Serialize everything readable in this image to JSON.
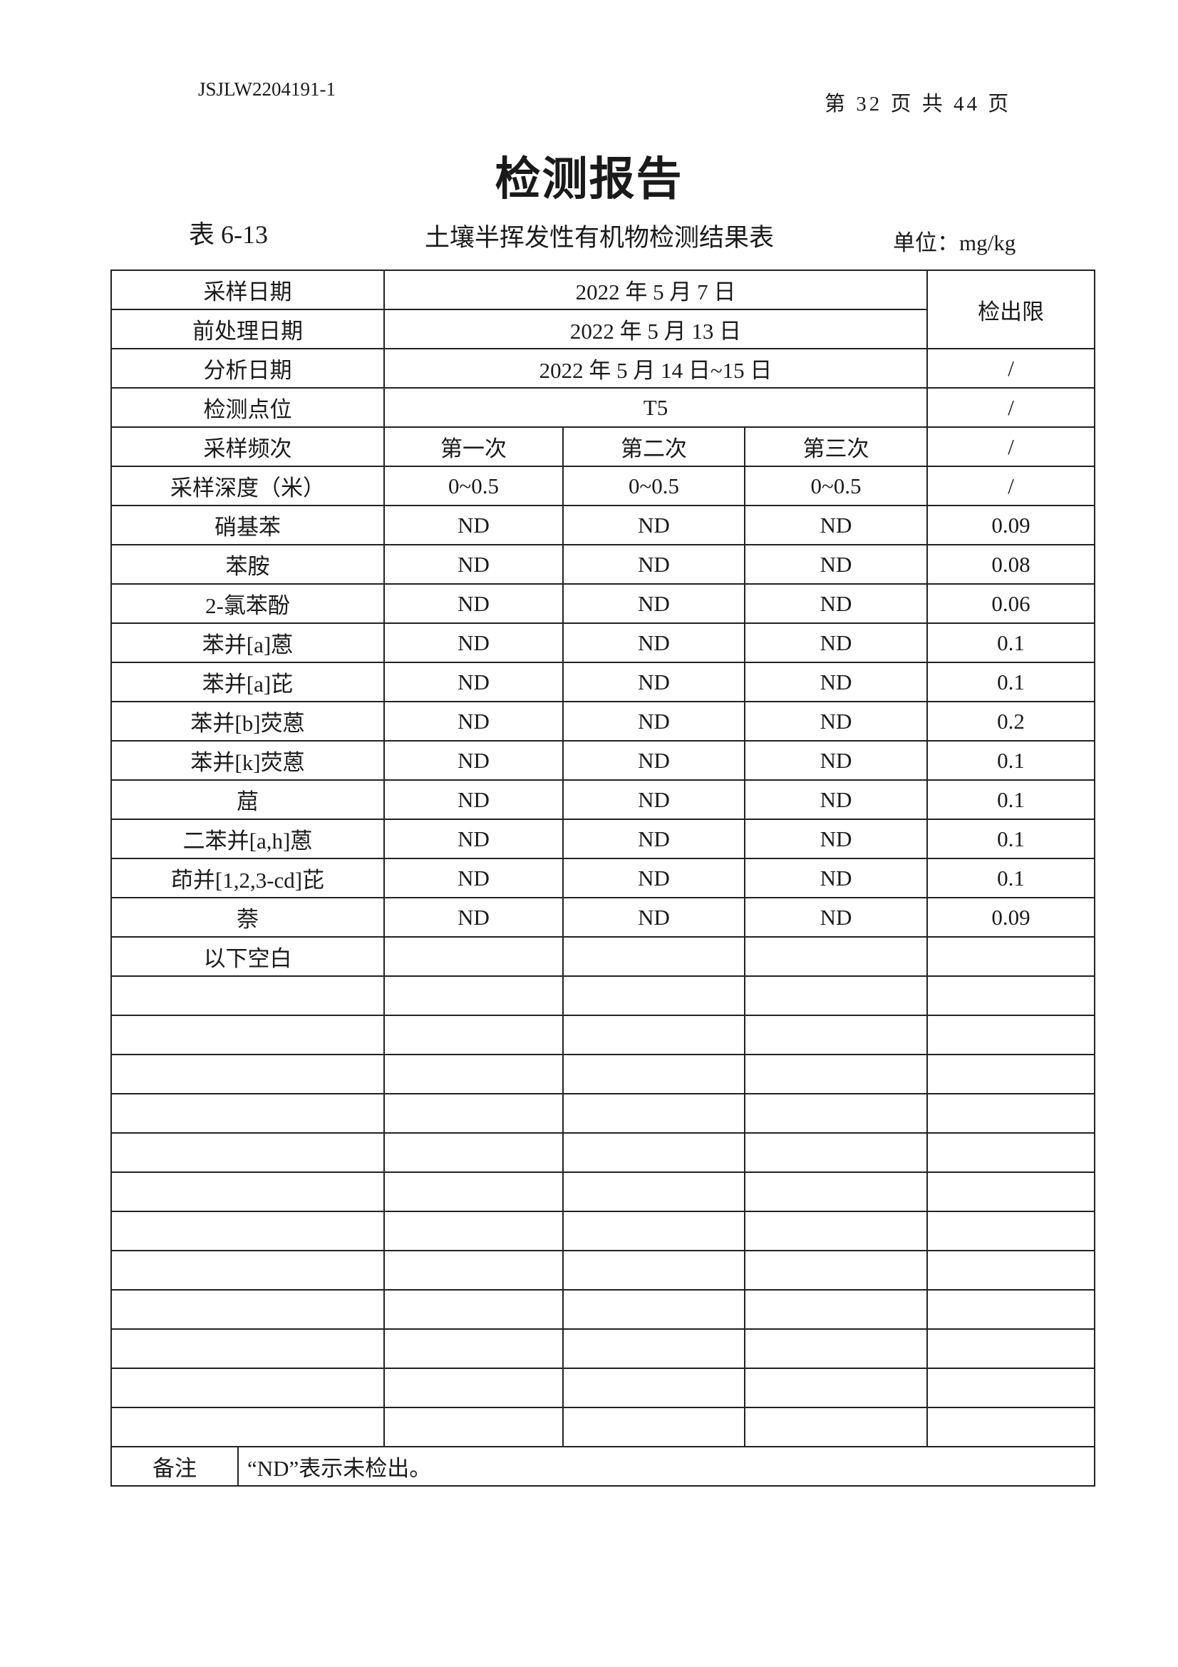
{
  "header": {
    "doc_no": "JSJLW2204191-1",
    "page": "第 32 页 共 44 页"
  },
  "title": "检测报告",
  "table_no": "表 6-13",
  "table_title": "土壤半挥发性有机物检测结果表",
  "unit": "单位：mg/kg",
  "meta": {
    "sampling_date_label": "采样日期",
    "sampling_date": "2022 年 5 月 7 日",
    "pretreat_date_label": "前处理日期",
    "pretreat_date": "2022 年 5 月 13 日",
    "detection_limit_label": "检出限",
    "analysis_date_label": "分析日期",
    "analysis_date": "2022 年 5 月 14 日~15 日",
    "analysis_limit": "/",
    "site_label": "检测点位",
    "site": "T5",
    "site_limit": "/",
    "freq_label": "采样频次",
    "freq": [
      "第一次",
      "第二次",
      "第三次"
    ],
    "freq_limit": "/",
    "depth_label": "采样深度（米）",
    "depth": [
      "0~0.5",
      "0~0.5",
      "0~0.5"
    ],
    "depth_limit": "/"
  },
  "rows": [
    {
      "name": "硝基苯",
      "values": [
        "ND",
        "ND",
        "ND"
      ],
      "limit": "0.09"
    },
    {
      "name": "苯胺",
      "values": [
        "ND",
        "ND",
        "ND"
      ],
      "limit": "0.08"
    },
    {
      "name": "2-氯苯酚",
      "values": [
        "ND",
        "ND",
        "ND"
      ],
      "limit": "0.06"
    },
    {
      "name": "苯并[a]蒽",
      "values": [
        "ND",
        "ND",
        "ND"
      ],
      "limit": "0.1"
    },
    {
      "name": "苯并[a]芘",
      "values": [
        "ND",
        "ND",
        "ND"
      ],
      "limit": "0.1"
    },
    {
      "name": "苯并[b]荧蒽",
      "values": [
        "ND",
        "ND",
        "ND"
      ],
      "limit": "0.2"
    },
    {
      "name": "苯并[k]荧蒽",
      "values": [
        "ND",
        "ND",
        "ND"
      ],
      "limit": "0.1"
    },
    {
      "name": "䓛",
      "values": [
        "ND",
        "ND",
        "ND"
      ],
      "limit": "0.1"
    },
    {
      "name": "二苯并[a,h]蒽",
      "values": [
        "ND",
        "ND",
        "ND"
      ],
      "limit": "0.1"
    },
    {
      "name": "茚并[1,2,3-cd]芘",
      "values": [
        "ND",
        "ND",
        "ND"
      ],
      "limit": "0.1"
    },
    {
      "name": "萘",
      "values": [
        "ND",
        "ND",
        "ND"
      ],
      "limit": "0.09"
    }
  ],
  "blank_note": "以下空白",
  "remark_label": "备注",
  "remark": "“ND”表示未检出。"
}
